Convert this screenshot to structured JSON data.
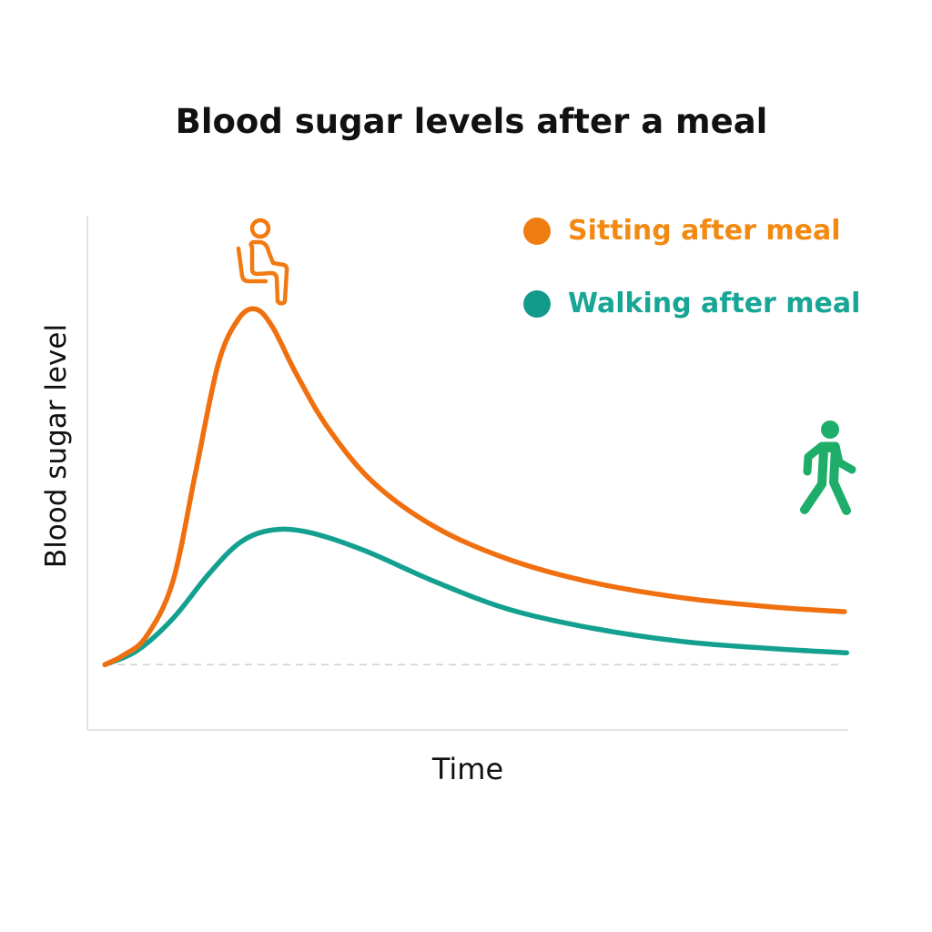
{
  "chart_data": {
    "type": "line",
    "title": "Blood sugar levels after a meal",
    "xlabel": "Time",
    "ylabel": "Blood sugar level",
    "xlim": [
      0,
      100
    ],
    "ylim": [
      0,
      100
    ],
    "baseline": 12.7,
    "grid": false,
    "legend_position": "top-right",
    "series": [
      {
        "name": "Sitting after meal",
        "color": "#f07010",
        "icon": "sitting-person-icon",
        "x": [
          2.3,
          4.7,
          7.7,
          11.2,
          14.2,
          17.2,
          19.9,
          22.2,
          24.4,
          27.4,
          31.6,
          37.6,
          45.9,
          55.5,
          66.3,
          78.2,
          90.2,
          99.5
        ],
        "y": [
          12.7,
          14.5,
          18.1,
          28.7,
          49.9,
          71.2,
          80.0,
          81.8,
          78.2,
          69.4,
          58.8,
          48.1,
          39.3,
          33.1,
          28.7,
          25.7,
          23.9,
          23.0
        ]
      },
      {
        "name": "Walking after meal",
        "color": "#14a090",
        "icon": "walking-person-icon",
        "x": [
          2.3,
          6.5,
          11.2,
          16.0,
          20.2,
          24.4,
          29.2,
          36.4,
          45.9,
          55.5,
          66.3,
          78.2,
          90.2,
          99.8
        ],
        "y": [
          12.7,
          15.4,
          21.6,
          30.4,
          36.6,
          38.9,
          38.4,
          34.9,
          28.7,
          23.4,
          19.8,
          17.2,
          15.8,
          15.0
        ]
      }
    ]
  },
  "colors": {
    "walking_icon": "#1fae6a",
    "axis": "#e4e4e4",
    "baseline": "#cccccc"
  }
}
